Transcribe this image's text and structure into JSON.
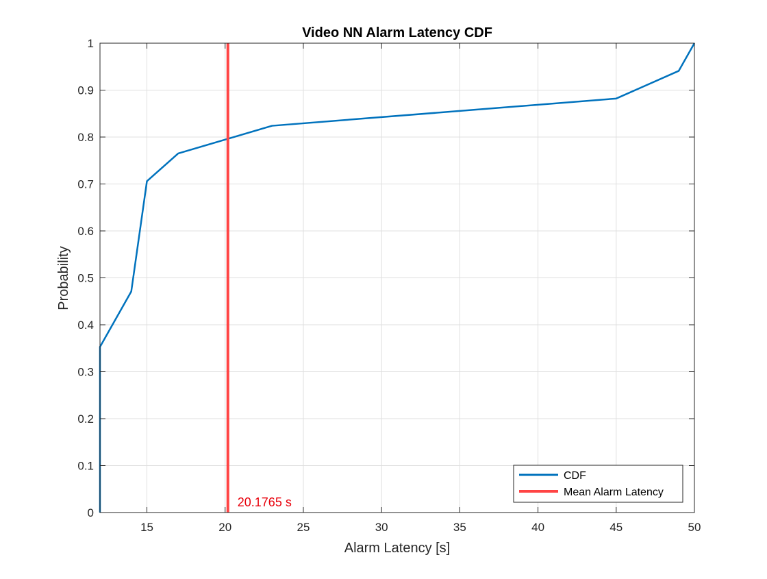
{
  "chart_data": {
    "type": "line",
    "title": "Video NN Alarm Latency CDF",
    "xlabel": "Alarm Latency [s]",
    "ylabel": "Probability",
    "xlim": [
      12,
      50
    ],
    "ylim": [
      0,
      1
    ],
    "xticks": [
      15,
      20,
      25,
      30,
      35,
      40,
      45,
      50
    ],
    "yticks": [
      0,
      0.1,
      0.2,
      0.3,
      0.4,
      0.5,
      0.6,
      0.7,
      0.8,
      0.9,
      1
    ],
    "xtick_labels": [
      "15",
      "20",
      "25",
      "30",
      "35",
      "40",
      "45",
      "50"
    ],
    "ytick_labels": [
      "0",
      "0.1",
      "0.2",
      "0.3",
      "0.4",
      "0.5",
      "0.6",
      "0.7",
      "0.8",
      "0.9",
      "1"
    ],
    "grid": true,
    "legend_position": "bottom-right",
    "series": [
      {
        "name": "CDF",
        "color": "#0072BD",
        "x": [
          12,
          12,
          14,
          15,
          17,
          23,
          45,
          49,
          50
        ],
        "y": [
          0,
          0.353,
          0.471,
          0.706,
          0.765,
          0.824,
          0.882,
          0.941,
          1.0
        ]
      },
      {
        "name": "Mean Alarm Latency",
        "color": "#FF4444",
        "x": [
          20.1765,
          20.1765
        ],
        "y": [
          0,
          1
        ]
      }
    ],
    "annotations": [
      {
        "text": "20.1765 s",
        "x": 20.1765,
        "y": 0,
        "color": "#E8000B"
      }
    ]
  }
}
